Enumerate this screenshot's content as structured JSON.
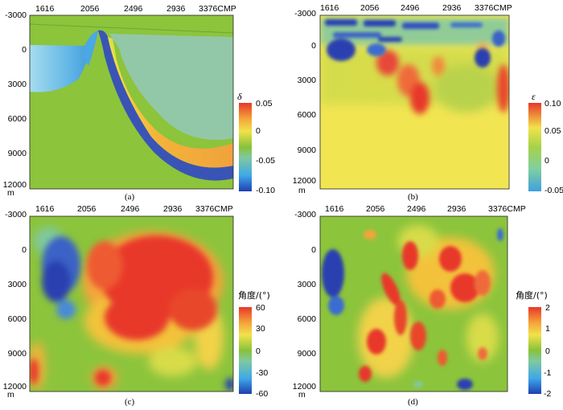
{
  "figure": {
    "panels": [
      {
        "id": "a",
        "caption": "(a)",
        "x_ticks": [
          "1616",
          "2056",
          "2496",
          "2936",
          "3376CMP"
        ],
        "y_ticks": [
          "-3000",
          "0",
          "3000",
          "6000",
          "9000",
          "12000"
        ],
        "y_unit": "m",
        "colorbar": {
          "symbol": "δ",
          "ticks": [
            "0.05",
            "0",
            "-0.05",
            "-0.10"
          ]
        }
      },
      {
        "id": "b",
        "caption": "(b)",
        "x_ticks": [
          "1616",
          "2056",
          "2496",
          "2936",
          "3376CMP"
        ],
        "y_ticks": [
          "-3000",
          "0",
          "3000",
          "6000",
          "9000",
          "12000"
        ],
        "y_unit": "m",
        "colorbar": {
          "symbol": "ε",
          "ticks": [
            "0.10",
            "0.05",
            "0",
            "-0.05"
          ]
        }
      },
      {
        "id": "c",
        "caption": "(c)",
        "x_ticks": [
          "1616",
          "2056",
          "2496",
          "2936",
          "3376CMP"
        ],
        "y_ticks": [
          "-3000",
          "0",
          "3000",
          "6000",
          "9000",
          "12000"
        ],
        "y_unit": "m",
        "colorbar": {
          "symbol": "角度/(°)",
          "ticks": [
            "60",
            "30",
            "0",
            "-30",
            "-60"
          ]
        }
      },
      {
        "id": "d",
        "caption": "(d)",
        "x_ticks": [
          "1616",
          "2056",
          "2496",
          "2936",
          "3376CMP"
        ],
        "y_ticks": [
          "-3000",
          "0",
          "3000",
          "6000",
          "9000",
          "12000"
        ],
        "y_unit": "m",
        "colorbar": {
          "symbol": "角度/(°)",
          "ticks": [
            "2",
            "1",
            "0",
            "-1",
            "-2"
          ]
        }
      }
    ]
  }
}
